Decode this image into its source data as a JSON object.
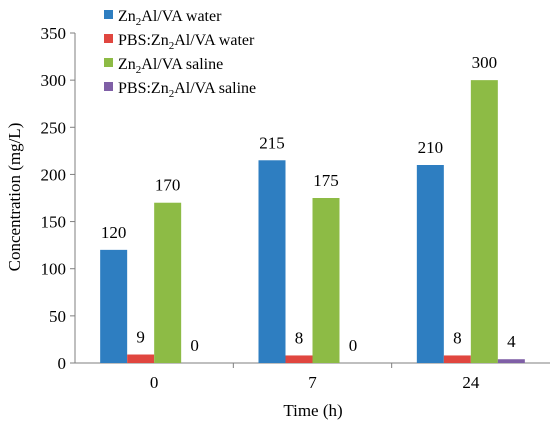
{
  "chart_data": {
    "type": "bar",
    "xlabel": "Time (h)",
    "ylabel": "Concentration (mg/L)",
    "categories": [
      "0",
      "7",
      "24"
    ],
    "ylim": [
      0,
      350
    ],
    "yticks": [
      0,
      50,
      100,
      150,
      200,
      250,
      300,
      350
    ],
    "grid": false,
    "legend_position": "top-left",
    "series": [
      {
        "name_main": "Zn",
        "name_sub": "2",
        "name_rest": "Al/VA water",
        "color": "#2E7EC1",
        "values": [
          120,
          215,
          210
        ],
        "labels": [
          "120",
          "215",
          "210"
        ]
      },
      {
        "name_main": "PBS:Zn",
        "name_sub": "2",
        "name_rest": "Al/VA water",
        "color": "#E0463F",
        "values": [
          9,
          8,
          8
        ],
        "labels": [
          "9",
          "8",
          "8"
        ]
      },
      {
        "name_main": "Zn",
        "name_sub": "2",
        "name_rest": "Al/VA saline",
        "color": "#8DBB45",
        "values": [
          170,
          175,
          300
        ],
        "labels": [
          "170",
          "175",
          "300"
        ]
      },
      {
        "name_main": "PBS:Zn",
        "name_sub": "2",
        "name_rest": "Al/VA saline",
        "color": "#7F5FA6",
        "values": [
          0,
          0,
          4
        ],
        "labels": [
          "0",
          "0",
          "4"
        ]
      }
    ]
  }
}
